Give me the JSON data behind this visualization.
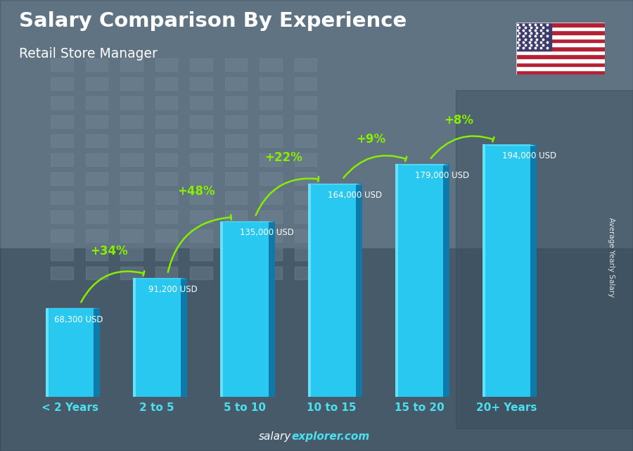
{
  "title": "Salary Comparison By Experience",
  "subtitle": "Retail Store Manager",
  "categories": [
    "< 2 Years",
    "2 to 5",
    "5 to 10",
    "10 to 15",
    "15 to 20",
    "20+ Years"
  ],
  "values": [
    68300,
    91200,
    135000,
    164000,
    179000,
    194000
  ],
  "labels": [
    "68,300 USD",
    "91,200 USD",
    "135,000 USD",
    "164,000 USD",
    "179,000 USD",
    "194,000 USD"
  ],
  "pct_changes": [
    "+34%",
    "+48%",
    "+22%",
    "+9%",
    "+8%"
  ],
  "bar_face_color": "#29c8f0",
  "bar_side_color": "#0e7aaa",
  "bar_top_color": "#5ddaf5",
  "bar_shine_color": "#80eeff",
  "bg_top_color": "#7a9ab0",
  "bg_bottom_color": "#4a6878",
  "text_color_white": "#ffffff",
  "text_color_cyan": "#4ae0f0",
  "text_color_green": "#88ee00",
  "ylabel": "Average Yearly Salary",
  "footer_salary": "salary",
  "footer_explorer": "explorer.com",
  "ylim_max": 215000,
  "bar_width": 0.55,
  "side_ratio": 0.13
}
